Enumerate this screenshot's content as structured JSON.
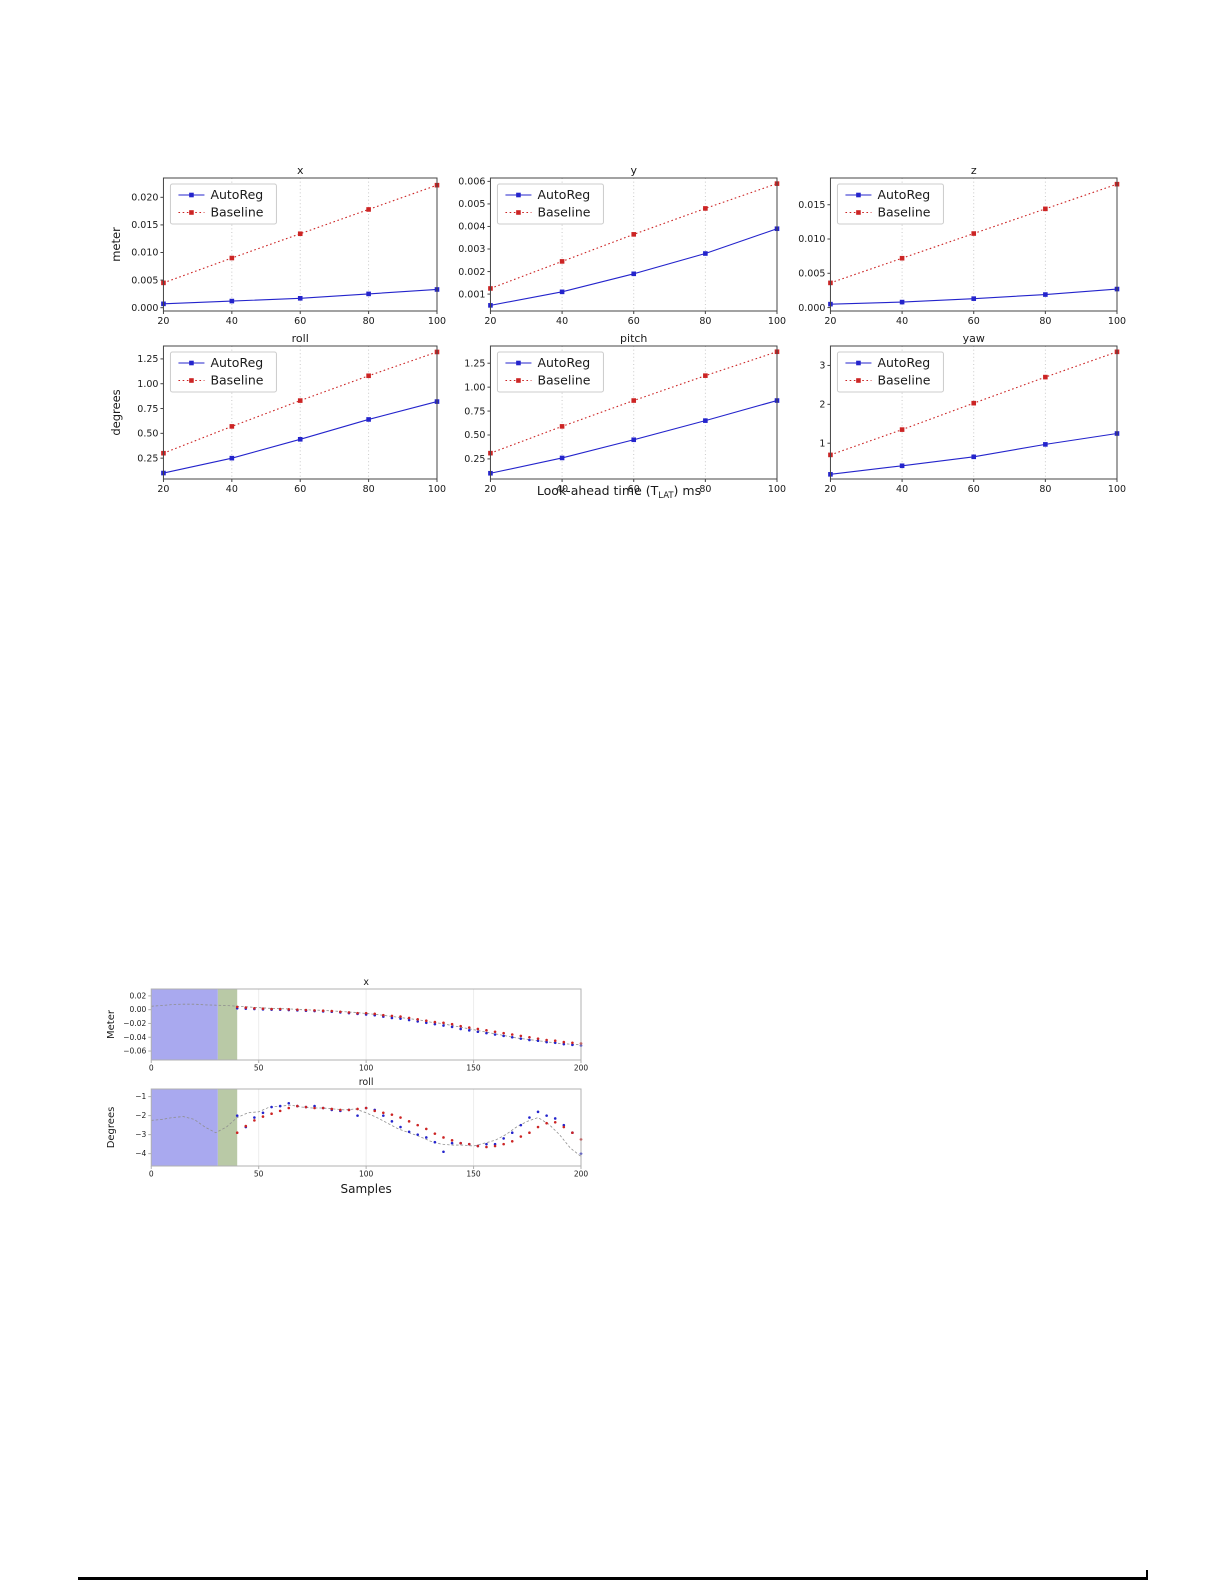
{
  "page": {
    "background": "#ffffff"
  },
  "colors": {
    "autoreg": "#2424cc",
    "baseline": "#cc2424",
    "ground_truth": "#8f8f8f",
    "history_region": "#a9a9ef",
    "context_region": "#b9c9a6",
    "grid_fig1": "#c4c4c4",
    "grid_fig2": "#ededed",
    "axis_fig1": "#444444",
    "axis_fig2": "#b0b0b0",
    "text": "#1a1a1a",
    "rule": "#000000"
  },
  "figure1": {
    "legend_labels": [
      "AutoReg",
      "Baseline"
    ],
    "xlabel": {
      "pre": "Look-ahead time (T",
      "sub": "LAT",
      "post": ") ms"
    }
  },
  "figure2": {
    "xlabel": "Samples"
  },
  "chart_data": [
    {
      "figure": 1,
      "type": "line",
      "title": "x",
      "ylabel": "meter",
      "xlim": [
        20,
        100
      ],
      "ylim": [
        -0.0006,
        0.0235
      ],
      "xticks": [
        20,
        40,
        60,
        80,
        100
      ],
      "yticks": [
        0.0,
        0.005,
        0.01,
        0.015,
        0.02
      ],
      "ytick_decimals": 3,
      "grid": "dotted",
      "legend": true,
      "legend_pos": "top-left",
      "x": [
        20,
        40,
        60,
        80,
        100
      ],
      "series": [
        {
          "name": "AutoReg",
          "style": "line-square",
          "color_key": "autoreg",
          "values": [
            0.0007,
            0.0012,
            0.0017,
            0.0025,
            0.0033
          ]
        },
        {
          "name": "Baseline",
          "style": "dotted-square",
          "color_key": "baseline",
          "values": [
            0.0045,
            0.009,
            0.0134,
            0.0178,
            0.0222
          ]
        }
      ]
    },
    {
      "figure": 1,
      "type": "line",
      "title": "y",
      "ylabel": null,
      "xlim": [
        20,
        100
      ],
      "ylim": [
        0.00025,
        0.00615
      ],
      "xticks": [
        20,
        40,
        60,
        80,
        100
      ],
      "yticks": [
        0.001,
        0.002,
        0.003,
        0.004,
        0.005,
        0.006
      ],
      "ytick_decimals": 3,
      "grid": "dotted",
      "legend": true,
      "legend_pos": "top-left",
      "x": [
        20,
        40,
        60,
        80,
        100
      ],
      "series": [
        {
          "name": "AutoReg",
          "style": "line-square",
          "color_key": "autoreg",
          "values": [
            0.0005,
            0.0011,
            0.0019,
            0.0028,
            0.0039
          ]
        },
        {
          "name": "Baseline",
          "style": "dotted-square",
          "color_key": "baseline",
          "values": [
            0.00125,
            0.00245,
            0.00365,
            0.0048,
            0.0059
          ]
        }
      ]
    },
    {
      "figure": 1,
      "type": "line",
      "title": "z",
      "ylabel": null,
      "xlim": [
        20,
        100
      ],
      "ylim": [
        -0.0005,
        0.0189
      ],
      "xticks": [
        20,
        40,
        60,
        80,
        100
      ],
      "yticks": [
        0.0,
        0.005,
        0.01,
        0.015
      ],
      "ytick_decimals": 3,
      "grid": "dotted",
      "legend": true,
      "legend_pos": "top-left",
      "x": [
        20,
        40,
        60,
        80,
        100
      ],
      "series": [
        {
          "name": "AutoReg",
          "style": "line-square",
          "color_key": "autoreg",
          "values": [
            0.0005,
            0.0008,
            0.0013,
            0.0019,
            0.0027
          ]
        },
        {
          "name": "Baseline",
          "style": "dotted-square",
          "color_key": "baseline",
          "values": [
            0.0036,
            0.0072,
            0.0108,
            0.0144,
            0.018
          ]
        }
      ]
    },
    {
      "figure": 1,
      "type": "line",
      "title": "roll",
      "ylabel": "degrees",
      "xlim": [
        20,
        100
      ],
      "ylim": [
        0.04,
        1.38
      ],
      "xticks": [
        20,
        40,
        60,
        80,
        100
      ],
      "yticks": [
        0.25,
        0.5,
        0.75,
        1.0,
        1.25
      ],
      "ytick_decimals": 2,
      "grid": "dotted",
      "legend": true,
      "legend_pos": "top-left",
      "x": [
        20,
        40,
        60,
        80,
        100
      ],
      "series": [
        {
          "name": "AutoReg",
          "style": "line-square",
          "color_key": "autoreg",
          "values": [
            0.1,
            0.25,
            0.44,
            0.64,
            0.82
          ]
        },
        {
          "name": "Baseline",
          "style": "dotted-square",
          "color_key": "baseline",
          "values": [
            0.3,
            0.57,
            0.83,
            1.08,
            1.32
          ]
        }
      ]
    },
    {
      "figure": 1,
      "type": "line",
      "title": "pitch",
      "ylabel": null,
      "xlim": [
        20,
        100
      ],
      "ylim": [
        0.04,
        1.43
      ],
      "xticks": [
        20,
        40,
        60,
        80,
        100
      ],
      "yticks": [
        0.25,
        0.5,
        0.75,
        1.0,
        1.25
      ],
      "ytick_decimals": 2,
      "grid": "dotted",
      "legend": true,
      "legend_pos": "top-left",
      "x": [
        20,
        40,
        60,
        80,
        100
      ],
      "series": [
        {
          "name": "AutoReg",
          "style": "line-square",
          "color_key": "autoreg",
          "values": [
            0.1,
            0.26,
            0.45,
            0.65,
            0.86
          ]
        },
        {
          "name": "Baseline",
          "style": "dotted-square",
          "color_key": "baseline",
          "values": [
            0.31,
            0.59,
            0.86,
            1.12,
            1.37
          ]
        }
      ]
    },
    {
      "figure": 1,
      "type": "line",
      "title": "yaw",
      "ylabel": null,
      "xlim": [
        20,
        100
      ],
      "ylim": [
        0.08,
        3.5
      ],
      "xticks": [
        20,
        40,
        60,
        80,
        100
      ],
      "yticks": [
        1,
        2,
        3
      ],
      "ytick_decimals": 0,
      "grid": "dotted",
      "legend": true,
      "legend_pos": "top-left",
      "x": [
        20,
        40,
        60,
        80,
        100
      ],
      "series": [
        {
          "name": "AutoReg",
          "style": "line-square",
          "color_key": "autoreg",
          "values": [
            0.2,
            0.42,
            0.65,
            0.97,
            1.25
          ]
        },
        {
          "name": "Baseline",
          "style": "dotted-square",
          "color_key": "baseline",
          "values": [
            0.7,
            1.35,
            2.03,
            2.7,
            3.35
          ]
        }
      ]
    },
    {
      "figure": 2,
      "type": "line+scatter",
      "title": "x",
      "ylabel": "Meter",
      "xlabel": null,
      "xlim": [
        0,
        200
      ],
      "ylim": [
        -0.073,
        0.03
      ],
      "xticks": [
        0,
        50,
        100,
        150,
        200
      ],
      "yticks": [
        0.02,
        0.0,
        -0.02,
        -0.04,
        -0.06
      ],
      "ytick_decimals": 2,
      "grid": "faint",
      "legend": false,
      "regions": [
        {
          "from": 0,
          "to": 31,
          "color_key": "history_region"
        },
        {
          "from": 31,
          "to": 40,
          "color_key": "context_region"
        }
      ],
      "series": [
        {
          "name": "ground-truth",
          "style": "dashed-line",
          "color_key": "ground_truth",
          "x": [
            0,
            5,
            10,
            15,
            20,
            25,
            30,
            35,
            40,
            45,
            50,
            55,
            60,
            65,
            70,
            75,
            80,
            85,
            90,
            95,
            100,
            105,
            110,
            115,
            120,
            125,
            130,
            135,
            140,
            145,
            150,
            155,
            160,
            165,
            170,
            175,
            180,
            185,
            190,
            195,
            200
          ],
          "values": [
            0.005,
            0.006,
            0.0075,
            0.008,
            0.008,
            0.007,
            0.0065,
            0.006,
            0.005,
            0.004,
            0.003,
            0.002,
            0.0015,
            0.001,
            0.0,
            -0.0005,
            -0.001,
            -0.002,
            -0.003,
            -0.004,
            -0.0055,
            -0.007,
            -0.009,
            -0.011,
            -0.013,
            -0.015,
            -0.018,
            -0.02,
            -0.023,
            -0.026,
            -0.029,
            -0.032,
            -0.035,
            -0.038,
            -0.041,
            -0.043,
            -0.045,
            -0.047,
            -0.049,
            -0.05,
            -0.051
          ]
        },
        {
          "name": "AutoReg",
          "style": "dots",
          "color_key": "autoreg",
          "x": [
            40,
            44,
            48,
            52,
            56,
            60,
            64,
            68,
            72,
            76,
            80,
            84,
            88,
            92,
            96,
            100,
            104,
            108,
            112,
            116,
            120,
            124,
            128,
            132,
            136,
            140,
            144,
            148,
            152,
            156,
            160,
            164,
            168,
            172,
            176,
            180,
            184,
            188,
            192,
            196,
            200
          ],
          "values": [
            0.002,
            0.0015,
            0.001,
            0.0005,
            0.0,
            0.0,
            -0.0005,
            -0.001,
            -0.0015,
            -0.002,
            -0.0025,
            -0.003,
            -0.004,
            -0.005,
            -0.006,
            -0.007,
            -0.008,
            -0.01,
            -0.012,
            -0.013,
            -0.015,
            -0.017,
            -0.019,
            -0.021,
            -0.023,
            -0.025,
            -0.028,
            -0.03,
            -0.032,
            -0.034,
            -0.036,
            -0.038,
            -0.04,
            -0.042,
            -0.044,
            -0.045,
            -0.047,
            -0.048,
            -0.05,
            -0.051,
            -0.052
          ]
        },
        {
          "name": "Baseline",
          "style": "dots",
          "color_key": "baseline",
          "x": [
            40,
            44,
            48,
            52,
            56,
            60,
            64,
            68,
            72,
            76,
            80,
            84,
            88,
            92,
            96,
            100,
            104,
            108,
            112,
            116,
            120,
            124,
            128,
            132,
            136,
            140,
            144,
            148,
            152,
            156,
            160,
            164,
            168,
            172,
            176,
            180,
            184,
            188,
            192,
            196,
            200
          ],
          "values": [
            0.004,
            0.003,
            0.002,
            0.0015,
            0.001,
            0.001,
            0.0005,
            0.0,
            -0.0005,
            -0.001,
            -0.0015,
            -0.002,
            -0.003,
            -0.004,
            -0.005,
            -0.005,
            -0.006,
            -0.008,
            -0.009,
            -0.01,
            -0.012,
            -0.014,
            -0.016,
            -0.018,
            -0.019,
            -0.021,
            -0.024,
            -0.026,
            -0.028,
            -0.03,
            -0.032,
            -0.034,
            -0.036,
            -0.038,
            -0.04,
            -0.042,
            -0.044,
            -0.045,
            -0.047,
            -0.048,
            -0.049
          ]
        }
      ]
    },
    {
      "figure": 2,
      "type": "line+scatter",
      "title": "roll",
      "ylabel": "Degrees",
      "xlabel": "Samples",
      "xlim": [
        0,
        200
      ],
      "ylim": [
        -4.65,
        -0.6
      ],
      "xticks": [
        0,
        50,
        100,
        150,
        200
      ],
      "yticks": [
        -1,
        -2,
        -3,
        -4
      ],
      "ytick_decimals": 0,
      "grid": "faint",
      "legend": false,
      "regions": [
        {
          "from": 0,
          "to": 31,
          "color_key": "history_region"
        },
        {
          "from": 31,
          "to": 40,
          "color_key": "context_region"
        }
      ],
      "series": [
        {
          "name": "ground-truth",
          "style": "dashed-line",
          "color_key": "ground_truth",
          "x": [
            0,
            5,
            10,
            15,
            20,
            25,
            30,
            35,
            40,
            45,
            50,
            55,
            60,
            65,
            70,
            75,
            80,
            85,
            90,
            95,
            100,
            105,
            110,
            115,
            120,
            125,
            130,
            135,
            140,
            145,
            150,
            155,
            160,
            165,
            170,
            175,
            180,
            185,
            190,
            195,
            200
          ],
          "values": [
            -2.25,
            -2.2,
            -2.1,
            -2.05,
            -2.2,
            -2.6,
            -2.9,
            -2.6,
            -2.1,
            -1.85,
            -1.8,
            -1.55,
            -1.5,
            -1.45,
            -1.55,
            -1.6,
            -1.6,
            -1.65,
            -1.7,
            -1.65,
            -1.85,
            -2.1,
            -2.4,
            -2.7,
            -2.9,
            -3.1,
            -3.35,
            -3.5,
            -3.55,
            -3.55,
            -3.6,
            -3.45,
            -3.3,
            -3.0,
            -2.6,
            -2.3,
            -2.1,
            -2.45,
            -3.0,
            -3.7,
            -4.15
          ]
        },
        {
          "name": "AutoReg",
          "style": "dots",
          "color_key": "autoreg",
          "x": [
            40,
            44,
            48,
            52,
            56,
            60,
            64,
            68,
            72,
            76,
            80,
            84,
            88,
            92,
            96,
            100,
            104,
            108,
            112,
            116,
            120,
            124,
            128,
            132,
            136,
            140,
            144,
            148,
            152,
            156,
            160,
            164,
            168,
            172,
            176,
            180,
            184,
            188,
            192,
            196,
            200
          ],
          "values": [
            -2.0,
            -2.6,
            -2.1,
            -1.85,
            -1.55,
            -1.5,
            -1.35,
            -1.5,
            -1.55,
            -1.5,
            -1.6,
            -1.7,
            -1.75,
            -1.7,
            -2.0,
            -1.6,
            -1.7,
            -2.0,
            -2.3,
            -2.6,
            -2.85,
            -3.0,
            -3.15,
            -3.4,
            -3.9,
            -3.45,
            -3.45,
            -3.5,
            -3.6,
            -3.5,
            -3.5,
            -3.2,
            -2.9,
            -2.5,
            -2.1,
            -1.8,
            -2.0,
            -2.15,
            -2.5,
            -2.9,
            -4.0
          ]
        },
        {
          "name": "Baseline",
          "style": "dots",
          "color_key": "baseline",
          "x": [
            40,
            44,
            48,
            52,
            56,
            60,
            64,
            68,
            72,
            76,
            80,
            84,
            88,
            92,
            96,
            100,
            104,
            108,
            112,
            116,
            120,
            124,
            128,
            132,
            136,
            140,
            144,
            148,
            152,
            156,
            160,
            164,
            168,
            172,
            176,
            180,
            184,
            188,
            192,
            196,
            200
          ],
          "values": [
            -2.9,
            -2.55,
            -2.25,
            -2.05,
            -1.9,
            -1.75,
            -1.6,
            -1.5,
            -1.55,
            -1.6,
            -1.6,
            -1.65,
            -1.7,
            -1.7,
            -1.65,
            -1.6,
            -1.75,
            -1.85,
            -1.95,
            -2.1,
            -2.3,
            -2.5,
            -2.7,
            -2.95,
            -3.15,
            -3.3,
            -3.45,
            -3.5,
            -3.6,
            -3.65,
            -3.6,
            -3.5,
            -3.35,
            -3.1,
            -2.9,
            -2.6,
            -2.4,
            -2.35,
            -2.6,
            -2.9,
            -3.25
          ]
        }
      ]
    }
  ]
}
